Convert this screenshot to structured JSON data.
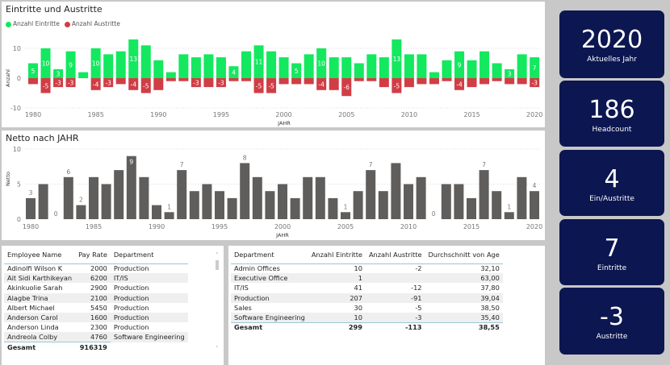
{
  "top_chart": {
    "title": "Eintritte und Austritte",
    "legend": [
      "Anzahl Eintritte",
      "Anzahl Austritte"
    ],
    "ylabel": "Anzahl",
    "xlabel": "JAHR",
    "yticks": [
      "10",
      "0",
      "-10"
    ],
    "xticks": [
      "1980",
      "1985",
      "1990",
      "1995",
      "2000",
      "2005",
      "2010",
      "2015",
      "2020"
    ]
  },
  "bottom_chart": {
    "title": "Netto nach JAHR",
    "ylabel": "Netto",
    "xlabel": "JAHR",
    "yticks": [
      "10",
      "5",
      "0"
    ],
    "xticks": [
      "1980",
      "1985",
      "1990",
      "1995",
      "2000",
      "2005",
      "2010",
      "2015",
      "2020"
    ]
  },
  "chart_data": [
    {
      "type": "bar",
      "title": "Eintritte und Austritte",
      "xlabel": "JAHR",
      "ylabel": "Anzahl",
      "ylim": [
        -10,
        13
      ],
      "colors": [
        "#13e85f",
        "#d13d45"
      ],
      "x": [
        1980,
        1981,
        1982,
        1983,
        1984,
        1985,
        1986,
        1987,
        1988,
        1989,
        1990,
        1991,
        1992,
        1993,
        1994,
        1995,
        1996,
        1997,
        1998,
        1999,
        2000,
        2001,
        2002,
        2003,
        2004,
        2005,
        2006,
        2007,
        2008,
        2009,
        2010,
        2011,
        2012,
        2013,
        2014,
        2015,
        2016,
        2017,
        2018,
        2019,
        2020
      ],
      "series": [
        {
          "name": "Anzahl Eintritte",
          "values": [
            5,
            10,
            3,
            9,
            2,
            10,
            8,
            9,
            13,
            11,
            6,
            2,
            8,
            7,
            8,
            7,
            4,
            9,
            11,
            9,
            7,
            5,
            8,
            10,
            7,
            7,
            5,
            8,
            7,
            13,
            8,
            8,
            2,
            6,
            9,
            6,
            9,
            5,
            3,
            8,
            7
          ],
          "labeled": [
            1980,
            1981,
            1982,
            1983,
            1985,
            1988,
            1996,
            1998,
            2001,
            2003,
            2009,
            2014,
            2018,
            2020
          ]
        },
        {
          "name": "Anzahl Austritte",
          "values": [
            -2,
            -5,
            -3,
            -3,
            0,
            -4,
            -3,
            -2,
            -4,
            -5,
            -4,
            -1,
            -1,
            -3,
            -3,
            -3,
            -1,
            -1,
            -5,
            -5,
            -2,
            -2,
            -2,
            -4,
            -4,
            -6,
            -1,
            -1,
            -3,
            -5,
            -3,
            -2,
            -2,
            -1,
            -4,
            -3,
            -2,
            -1,
            -2,
            -2,
            -3
          ],
          "labeled": [
            1981,
            1982,
            1983,
            1985,
            1986,
            1988,
            1989,
            1993,
            1995,
            1998,
            1999,
            2003,
            2005,
            2009,
            2014,
            2020
          ]
        }
      ]
    },
    {
      "type": "bar",
      "title": "Netto nach JAHR",
      "xlabel": "JAHR",
      "ylabel": "Netto",
      "ylim": [
        0,
        10
      ],
      "color": "#605e5c",
      "x": [
        1980,
        1981,
        1982,
        1983,
        1984,
        1985,
        1986,
        1987,
        1988,
        1989,
        1990,
        1991,
        1992,
        1993,
        1994,
        1995,
        1996,
        1997,
        1998,
        1999,
        2000,
        2001,
        2002,
        2003,
        2004,
        2005,
        2006,
        2007,
        2008,
        2009,
        2010,
        2011,
        2012,
        2013,
        2014,
        2015,
        2016,
        2017,
        2018,
        2019,
        2020
      ],
      "values": [
        3,
        5,
        0,
        6,
        2,
        6,
        5,
        7,
        9,
        6,
        2,
        1,
        7,
        4,
        5,
        4,
        3,
        8,
        6,
        4,
        5,
        3,
        6,
        6,
        3,
        1,
        4,
        7,
        4,
        8,
        5,
        6,
        0,
        5,
        5,
        3,
        7,
        4,
        1,
        6,
        4
      ],
      "labeled": [
        1980,
        1982,
        1983,
        1984,
        1988,
        1991,
        1992,
        1997,
        2005,
        2007,
        2012,
        2016,
        2018,
        2020
      ]
    }
  ],
  "kpis": [
    {
      "value": "2020",
      "label": "Aktuelles Jahr"
    },
    {
      "value": "186",
      "label": "Headcount"
    },
    {
      "value": "4",
      "label": "Ein/Austritte"
    },
    {
      "value": "7",
      "label": "Eintritte"
    },
    {
      "value": "-3",
      "label": "Austritte"
    }
  ],
  "employee_table": {
    "headers": [
      "Employee Name",
      "Pay Rate",
      "Department"
    ],
    "rows": [
      [
        "Adinolfi Wilson K",
        "2000",
        "Production"
      ],
      [
        "Ait Sidi Karthikeyan",
        "6200",
        "IT/IS"
      ],
      [
        "Akinkuolie Sarah",
        "2900",
        "Production"
      ],
      [
        "Alagbe Trina",
        "2100",
        "Production"
      ],
      [
        "Albert Michael",
        "5450",
        "Production"
      ],
      [
        "Anderson Carol",
        "1600",
        "Production"
      ],
      [
        "Anderson Linda",
        "2300",
        "Production"
      ],
      [
        "Andreola Colby",
        "4760",
        "Software Engineering"
      ]
    ],
    "total": [
      "Gesamt",
      "916319"
    ]
  },
  "dept_table": {
    "headers": [
      "Department",
      "Anzahl Eintritte",
      "Anzahl Austritte",
      "Durchschnitt von Age"
    ],
    "rows": [
      [
        "Admin Offices",
        "10",
        "-2",
        "32,10"
      ],
      [
        "Executive Office",
        "1",
        "",
        "63,00"
      ],
      [
        "IT/IS",
        "41",
        "-12",
        "37,80"
      ],
      [
        "Production",
        "207",
        "-91",
        "39,04"
      ],
      [
        "Sales",
        "30",
        "-5",
        "38,50"
      ],
      [
        "Software Engineering",
        "10",
        "-3",
        "35,40"
      ]
    ],
    "total": [
      "Gesamt",
      "299",
      "-113",
      "38,55"
    ]
  }
}
